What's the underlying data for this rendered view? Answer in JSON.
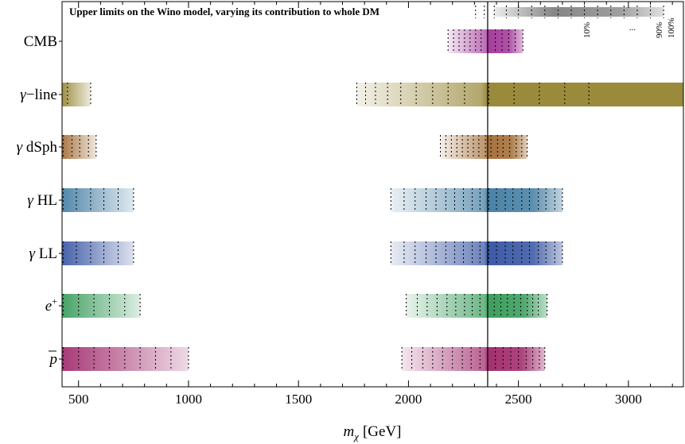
{
  "chart_data": {
    "type": "range_bar",
    "title": "Upper limits on the Wino model, varying its contribution to whole DM",
    "xlabel": "m_χ [GeV]",
    "xlabel_text": "[GeV]",
    "xlim": [
      425,
      3250
    ],
    "xticks": [
      500,
      1000,
      1500,
      2000,
      2500,
      3000
    ],
    "xtick_labels": [
      "500",
      "1000",
      "1500",
      "2000",
      "2500",
      "3000"
    ],
    "reference_line_x": 2360,
    "legend": {
      "labels": [
        "10%",
        "...",
        "90%",
        "100%"
      ],
      "placement": "top-right"
    },
    "rows": [
      {
        "name": "CMB",
        "label": "CMB",
        "color": "#a63d9c",
        "bands": [
          {
            "low": 2180,
            "high": 2520,
            "dashes": [
              2180,
              2205,
              2230,
              2255,
              2280,
              2305,
              2330,
              2360,
              2395,
              2425,
              2455,
              2485,
              2520
            ]
          }
        ]
      },
      {
        "name": "gamma-line",
        "label": "−line",
        "color": "#9a8a3c",
        "bands": [
          {
            "low": 425,
            "high": 555,
            "dashes": [
              450,
              555
            ]
          },
          {
            "low": 1765,
            "high": 3250,
            "dashes": [
              1765,
              1805,
              1850,
              1905,
              1965,
              2035,
              2110,
              2180,
              2255,
              2365,
              2480,
              2595,
              2710,
              2820
            ]
          }
        ]
      },
      {
        "name": "gamma-dSph",
        "label": "dSph",
        "color": "#a6713c",
        "bands": [
          {
            "low": 425,
            "high": 580,
            "dashes": [
              430,
              470,
              505,
              545,
              580
            ]
          },
          {
            "low": 2145,
            "high": 2540,
            "dashes": [
              2145,
              2170,
              2195,
              2220,
              2245,
              2270,
              2295,
              2320,
              2350,
              2375,
              2405,
              2430,
              2460,
              2490,
              2515,
              2540
            ]
          }
        ]
      },
      {
        "name": "gamma-HL",
        "label": "HL",
        "color": "#4a82a6",
        "bands": [
          {
            "low": 425,
            "high": 750,
            "dashes": [
              430,
              490,
              555,
              615,
              680,
              750
            ]
          },
          {
            "low": 1920,
            "high": 2700,
            "dashes": [
              1920,
              1980,
              2030,
              2080,
              2125,
              2170,
              2210,
              2250,
              2290,
              2325,
              2365,
              2400,
              2440,
              2475,
              2515,
              2550,
              2590,
              2625,
              2665,
              2700
            ]
          }
        ]
      },
      {
        "name": "gamma-LL",
        "label": "LL",
        "color": "#3d5aa6",
        "bands": [
          {
            "low": 425,
            "high": 750,
            "dashes": [
              430,
              490,
              555,
              615,
              680,
              750
            ]
          },
          {
            "low": 1920,
            "high": 2700,
            "dashes": [
              1920,
              1980,
              2030,
              2080,
              2125,
              2170,
              2210,
              2250,
              2290,
              2325,
              2365,
              2400,
              2440,
              2475,
              2515,
              2550,
              2590,
              2625,
              2665,
              2700
            ]
          }
        ]
      },
      {
        "name": "positron",
        "label": "e",
        "label_sup": "+",
        "color": "#3d9e5e",
        "bands": [
          {
            "low": 425,
            "high": 780,
            "dashes": [
              430,
              500,
              570,
              640,
              710,
              780
            ]
          },
          {
            "low": 1990,
            "high": 2630,
            "dashes": [
              1990,
              2040,
              2085,
              2130,
              2175,
              2215,
              2255,
              2290,
              2325,
              2360,
              2390,
              2420,
              2450,
              2480,
              2510,
              2540,
              2565,
              2590,
              2630
            ]
          }
        ]
      },
      {
        "name": "antiproton",
        "label": "p",
        "color": "#a32f6f",
        "bands": [
          {
            "low": 425,
            "high": 1000,
            "dashes": [
              430,
              500,
              570,
              640,
              710,
              780,
              850,
              920,
              1000
            ]
          },
          {
            "low": 1970,
            "high": 2620,
            "dashes": [
              1970,
              2015,
              2065,
              2110,
              2155,
              2200,
              2245,
              2285,
              2325,
              2360,
              2395,
              2430,
              2465,
              2500,
              2535,
              2565,
              2595,
              2620
            ]
          }
        ]
      }
    ],
    "legend_bar": {
      "low": 2390,
      "high": 3160,
      "color": "#808080",
      "dashes": [
        2305,
        2345,
        2390,
        2445,
        2500,
        2560,
        2620,
        2680,
        2740,
        2800,
        2860,
        2920,
        2980,
        3040,
        3100,
        3160
      ]
    }
  }
}
